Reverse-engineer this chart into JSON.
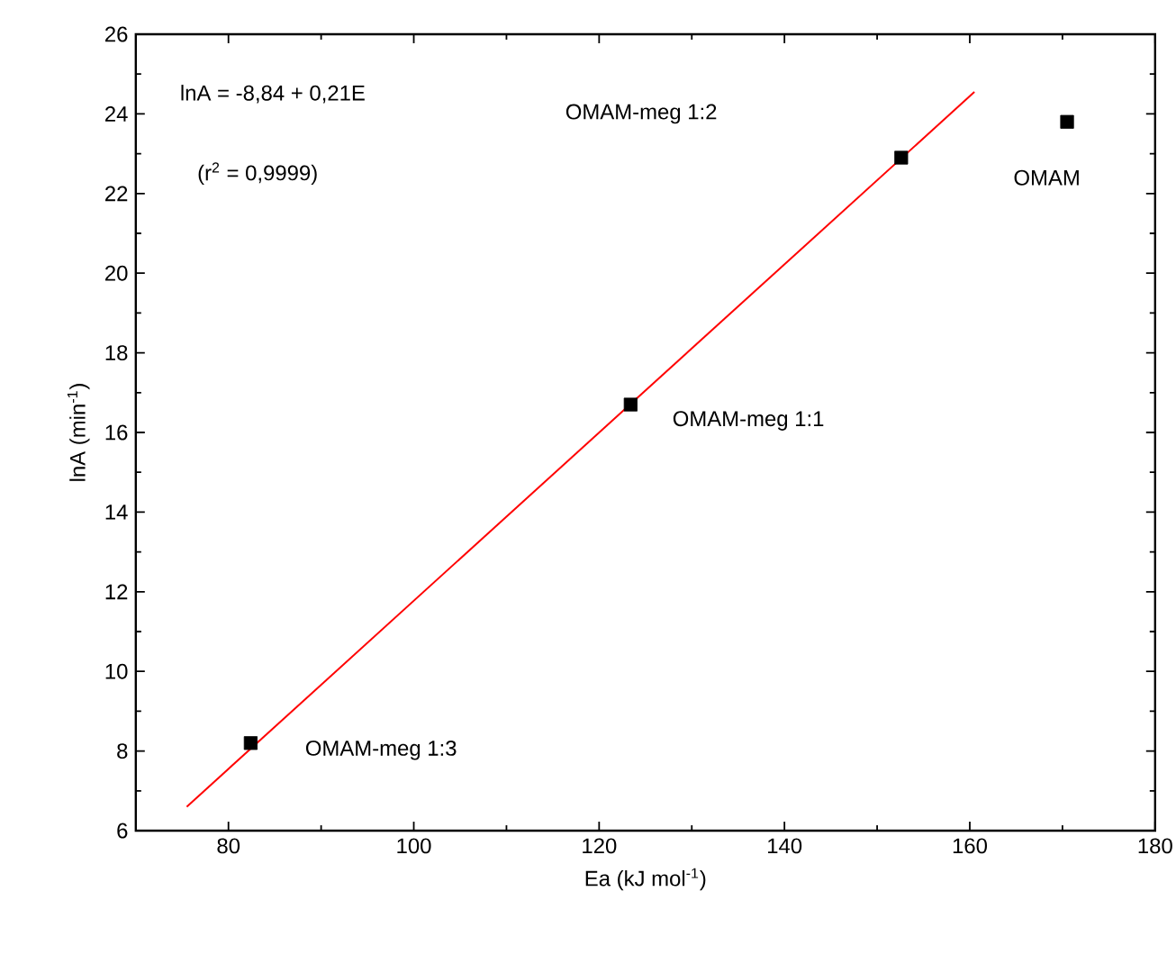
{
  "chart_data": {
    "type": "scatter",
    "xlabel": "Ea (kJ mol$^{-1}$)",
    "ylabel": "lnA (min$^{-1}$)",
    "xlim": [
      70,
      180
    ],
    "ylim": [
      6,
      26
    ],
    "xticks": [
      80,
      100,
      120,
      140,
      160,
      180
    ],
    "yticks": [
      6,
      8,
      10,
      12,
      14,
      16,
      18,
      20,
      22,
      24,
      26
    ],
    "grid": false,
    "series": [
      {
        "marker": "square",
        "color": "#000000",
        "x": [
          82.4,
          123.4,
          152.6,
          170.5
        ],
        "values": [
          8.2,
          16.7,
          22.9,
          23.8
        ]
      },
      {
        "type": "line",
        "marker": "none",
        "line_style": "solid",
        "color": "#ff0000",
        "x": [
          75.5,
          160.5
        ],
        "values": [
          6.6,
          24.55
        ]
      }
    ],
    "annotations": [
      "lnA = -8,84 + 0,21E",
      "(r$^{2}$ = 0,9999)",
      {
        "text": "OMAM-meg 1:3",
        "x": 82.4,
        "y": 8.2
      },
      {
        "text": "OMAM-meg 1:1",
        "x": 123.4,
        "y": 16.7
      },
      "OMAM-meg 1:2",
      {
        "text": "OMAM",
        "x": 170.5,
        "y": 23.8
      }
    ]
  }
}
